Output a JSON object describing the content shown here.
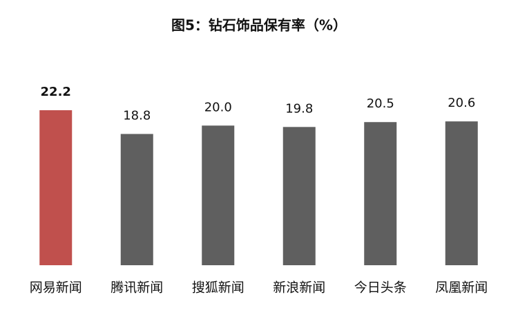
{
  "chart_data": {
    "type": "bar",
    "title": "图5：钻石饰品保有率（%）",
    "categories": [
      "网易新闻",
      "腾讯新闻",
      "搜狐新闻",
      "新浪新闻",
      "今日头条",
      "凤凰新闻"
    ],
    "values": [
      22.2,
      18.8,
      20.0,
      19.8,
      20.5,
      20.6
    ],
    "value_labels": [
      "22.2",
      "18.8",
      "20.0",
      "19.8",
      "20.5",
      "20.6"
    ],
    "color": "#5f5f5f",
    "colors": [
      "#c0504d",
      "#5f5f5f",
      "#5f5f5f",
      "#5f5f5f",
      "#5f5f5f",
      "#5f5f5f"
    ]
  }
}
